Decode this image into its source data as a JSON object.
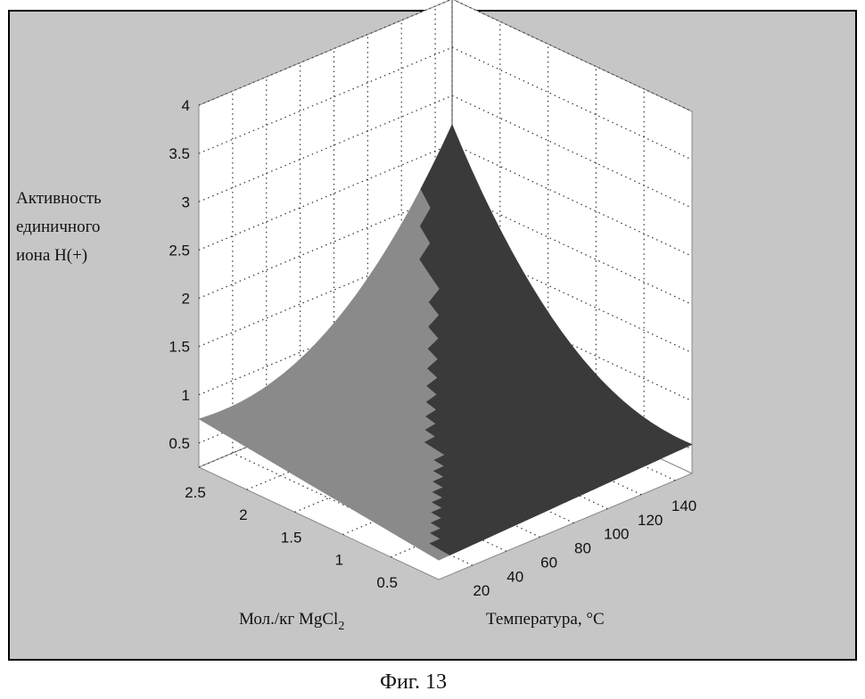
{
  "caption": "Фиг. 13",
  "chart_data": {
    "type": "surface",
    "zlabel_lines": [
      "Активность",
      "единичного",
      "иона H(+)"
    ],
    "xlabel": "Мол./кг MgCl",
    "xlabel_subscript": "2",
    "ylabel": "Температура, °C",
    "x_ticks": [
      "0.5",
      "1",
      "1.5",
      "2",
      "2.5"
    ],
    "y_ticks": [
      "20",
      "40",
      "60",
      "80",
      "100",
      "120",
      "140"
    ],
    "z_ticks": [
      "0.5",
      "1",
      "1.5",
      "2",
      "2.5",
      "3",
      "3.5",
      "4"
    ],
    "x_range": [
      0,
      2.5
    ],
    "y_range": [
      0,
      150
    ],
    "z_range": [
      0.25,
      4
    ],
    "grid": true,
    "surface_corners": [
      {
        "x": 0,
        "y": 0,
        "z": 0.55
      },
      {
        "x": 2.5,
        "y": 0,
        "z": 1.1
      },
      {
        "x": 2.5,
        "y": 150,
        "z": 2.7
      },
      {
        "x": 0,
        "y": 150,
        "z": 0.6
      }
    ],
    "colors": {
      "background": "#c6c6c6",
      "axes_panel": "#ffffff",
      "grid": "#333333",
      "surface_dark": "#3a3a3a",
      "surface_light": "#8a8a8a",
      "border": "#000000"
    }
  }
}
